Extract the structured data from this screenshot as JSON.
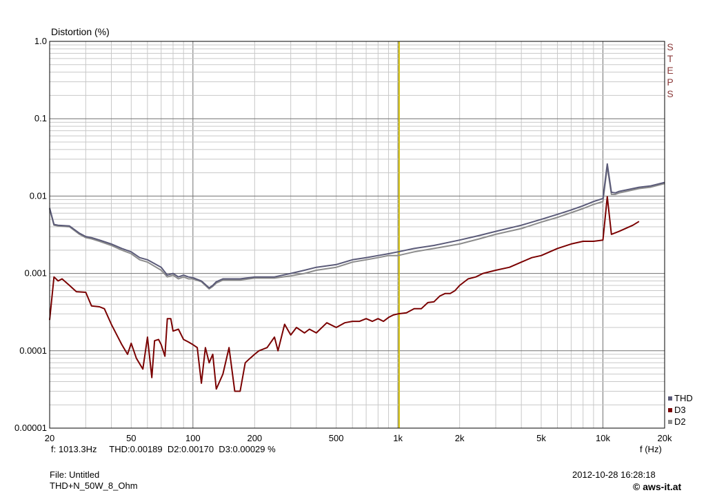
{
  "chart_data": {
    "type": "line",
    "ylabel": "Distortion (%)",
    "xlabel": "f (Hz)",
    "xscale": "log",
    "yscale": "log",
    "xlim": [
      20,
      20000
    ],
    "ylim": [
      1e-05,
      1.0
    ],
    "grid": true,
    "marker_line_x": 1013.3,
    "marker_line_color": "#d4c000",
    "x_ticks": [
      {
        "v": 20,
        "label": "20"
      },
      {
        "v": 50,
        "label": "50"
      },
      {
        "v": 100,
        "label": "100"
      },
      {
        "v": 200,
        "label": "200"
      },
      {
        "v": 500,
        "label": "500"
      },
      {
        "v": 1000,
        "label": "1k"
      },
      {
        "v": 2000,
        "label": "2k"
      },
      {
        "v": 5000,
        "label": "5k"
      },
      {
        "v": 10000,
        "label": "10k"
      },
      {
        "v": 20000,
        "label": "20k"
      }
    ],
    "y_ticks": [
      {
        "v": 1.0,
        "label": "1.0"
      },
      {
        "v": 0.1,
        "label": "0.1"
      },
      {
        "v": 0.01,
        "label": "0.01"
      },
      {
        "v": 0.001,
        "label": "0.001"
      },
      {
        "v": 0.0001,
        "label": "0.0001"
      },
      {
        "v": 1e-05,
        "label": "0.00001"
      }
    ],
    "legend_position": "bottom-right",
    "series": [
      {
        "name": "THD",
        "color": "#5a5a78",
        "x": [
          20,
          21,
          22,
          25,
          28,
          30,
          32,
          35,
          40,
          45,
          50,
          55,
          60,
          70,
          75,
          80,
          85,
          90,
          95,
          100,
          110,
          120,
          125,
          130,
          140,
          150,
          170,
          200,
          220,
          250,
          300,
          350,
          400,
          500,
          600,
          700,
          800,
          900,
          1000,
          1200,
          1500,
          2000,
          2500,
          3000,
          4000,
          5000,
          6000,
          7000,
          8000,
          9000,
          10000,
          10500,
          11000,
          11500,
          12000,
          13000,
          15000,
          17000,
          20000
        ],
        "y": [
          0.007,
          0.0043,
          0.0042,
          0.0041,
          0.0033,
          0.003,
          0.0029,
          0.0027,
          0.0024,
          0.0021,
          0.0019,
          0.0016,
          0.0015,
          0.0012,
          0.00095,
          0.001,
          0.0009,
          0.00095,
          0.0009,
          0.00088,
          0.0008,
          0.00065,
          0.0007,
          0.00078,
          0.00085,
          0.00085,
          0.00085,
          0.0009,
          0.0009,
          0.0009,
          0.001,
          0.0011,
          0.0012,
          0.0013,
          0.0015,
          0.0016,
          0.0017,
          0.0018,
          0.0019,
          0.0021,
          0.0023,
          0.0027,
          0.0031,
          0.0035,
          0.0042,
          0.005,
          0.0058,
          0.0066,
          0.0075,
          0.0085,
          0.0093,
          0.026,
          0.0112,
          0.011,
          0.0115,
          0.012,
          0.013,
          0.0135,
          0.015
        ]
      },
      {
        "name": "D3",
        "color": "#7a0000",
        "x": [
          20,
          21,
          22,
          23,
          25,
          27,
          30,
          32,
          35,
          37,
          40,
          45,
          48,
          50,
          53,
          57,
          60,
          63,
          65,
          68,
          70,
          73,
          75,
          78,
          80,
          85,
          90,
          95,
          100,
          105,
          110,
          115,
          120,
          125,
          130,
          140,
          150,
          160,
          170,
          180,
          190,
          200,
          210,
          230,
          250,
          260,
          280,
          300,
          320,
          350,
          370,
          400,
          450,
          500,
          550,
          600,
          650,
          700,
          750,
          800,
          850,
          900,
          950,
          1000,
          1100,
          1200,
          1300,
          1400,
          1500,
          1600,
          1700,
          1800,
          1900,
          2000,
          2200,
          2400,
          2600,
          3000,
          3500,
          4000,
          4500,
          5000,
          5500,
          6000,
          7000,
          8000,
          9000,
          10000,
          10500,
          11000,
          12000,
          14000,
          15000
        ],
        "y": [
          0.00025,
          0.0009,
          0.0008,
          0.00085,
          0.0007,
          0.00058,
          0.00057,
          0.00038,
          0.00037,
          0.00035,
          0.00022,
          0.00012,
          9e-05,
          0.000125,
          8e-05,
          5.8e-05,
          0.00015,
          4.5e-05,
          0.000135,
          0.00014,
          0.00012,
          8.5e-05,
          0.00026,
          0.00026,
          0.00018,
          0.00019,
          0.00014,
          0.00013,
          0.00012,
          0.00011,
          3.8e-05,
          0.00011,
          7e-05,
          9e-05,
          3.2e-05,
          5e-05,
          0.00011,
          3e-05,
          3e-05,
          7e-05,
          8e-05,
          9e-05,
          0.0001,
          0.00011,
          0.00015,
          0.0001,
          0.00022,
          0.00016,
          0.0002,
          0.00017,
          0.00019,
          0.00017,
          0.00023,
          0.0002,
          0.00023,
          0.00024,
          0.00024,
          0.00026,
          0.00024,
          0.00026,
          0.00024,
          0.00027,
          0.00029,
          0.0003,
          0.00031,
          0.00035,
          0.00035,
          0.00042,
          0.00043,
          0.00051,
          0.00055,
          0.00055,
          0.0006,
          0.0007,
          0.00085,
          0.0009,
          0.001,
          0.0011,
          0.0012,
          0.0014,
          0.0016,
          0.0017,
          0.0019,
          0.0021,
          0.0024,
          0.0026,
          0.0026,
          0.0027,
          0.0098,
          0.0032,
          0.0035,
          0.0042,
          0.0047
        ]
      },
      {
        "name": "D2",
        "color": "#8c8c8c",
        "x": [
          20,
          21,
          22,
          25,
          28,
          30,
          32,
          35,
          40,
          45,
          50,
          55,
          60,
          70,
          75,
          80,
          85,
          90,
          95,
          100,
          110,
          120,
          125,
          130,
          140,
          150,
          170,
          200,
          220,
          250,
          300,
          350,
          400,
          500,
          600,
          700,
          800,
          900,
          1000,
          1200,
          1500,
          2000,
          2500,
          3000,
          4000,
          5000,
          6000,
          7000,
          8000,
          9000,
          10000,
          10500,
          11000,
          11500,
          12000,
          13000,
          15000,
          17000,
          20000
        ],
        "y": [
          0.0068,
          0.0042,
          0.0041,
          0.004,
          0.0032,
          0.0029,
          0.0028,
          0.0026,
          0.0023,
          0.002,
          0.0018,
          0.0015,
          0.0014,
          0.0011,
          0.0009,
          0.00095,
          0.00085,
          0.0009,
          0.00085,
          0.00085,
          0.00078,
          0.00063,
          0.00068,
          0.00075,
          0.00082,
          0.00082,
          0.00082,
          0.00087,
          0.00087,
          0.00087,
          0.00093,
          0.001,
          0.0011,
          0.0012,
          0.0014,
          0.0015,
          0.0016,
          0.0017,
          0.0017,
          0.0019,
          0.0021,
          0.0024,
          0.0028,
          0.0032,
          0.0038,
          0.0046,
          0.0053,
          0.0061,
          0.0069,
          0.0078,
          0.0085,
          0.024,
          0.0105,
          0.0105,
          0.011,
          0.0115,
          0.0125,
          0.013,
          0.0145
        ]
      }
    ]
  },
  "labels": {
    "steps_text": "S T E P S",
    "readout": "f: 1013.3Hz     THD:0.00189  D2:0.00170  D3:0.00029 %",
    "file": "File: Untitled",
    "setup": "THD+N_50W_8_Ohm",
    "timestamp": "2012-10-28 16:28:18",
    "copyright": "© aws-it.at"
  }
}
